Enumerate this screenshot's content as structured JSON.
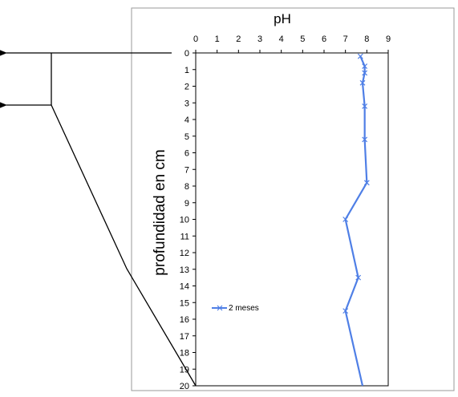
{
  "chart_data": {
    "type": "line",
    "title": "pH",
    "ylabel": "profundidad en cm",
    "xlabel": "",
    "xlim": [
      0,
      9
    ],
    "ylim": [
      0,
      20
    ],
    "y_inverted": true,
    "x_axis_position": "top",
    "x_ticks": [
      "0",
      "1",
      "2",
      "3",
      "4",
      "5",
      "6",
      "7",
      "8",
      "9"
    ],
    "y_ticks": [
      "0",
      "1",
      "2",
      "3",
      "4",
      "5",
      "6",
      "7",
      "8",
      "9",
      "10",
      "11",
      "12",
      "13",
      "14",
      "15",
      "16",
      "17",
      "18",
      "19",
      "20"
    ],
    "grid": false,
    "legend_position": "bottom-left",
    "series": [
      {
        "name": "2 meses",
        "color": "#4f7fe6",
        "marker": "x",
        "points": [
          {
            "x": 7.7,
            "y": 0.2
          },
          {
            "x": 7.9,
            "y": 0.8
          },
          {
            "x": 7.9,
            "y": 1.2
          },
          {
            "x": 7.8,
            "y": 1.8
          },
          {
            "x": 7.9,
            "y": 3.2
          },
          {
            "x": 7.9,
            "y": 5.2
          },
          {
            "x": 8.0,
            "y": 7.8
          },
          {
            "x": 7.0,
            "y": 10.0
          },
          {
            "x": 7.6,
            "y": 13.5
          },
          {
            "x": 7.0,
            "y": 15.5
          },
          {
            "x": 7.8,
            "y": 20.0
          }
        ],
        "marked_indices": [
          0,
          1,
          2,
          3,
          4,
          5,
          6,
          7,
          8,
          9
        ]
      }
    ]
  }
}
